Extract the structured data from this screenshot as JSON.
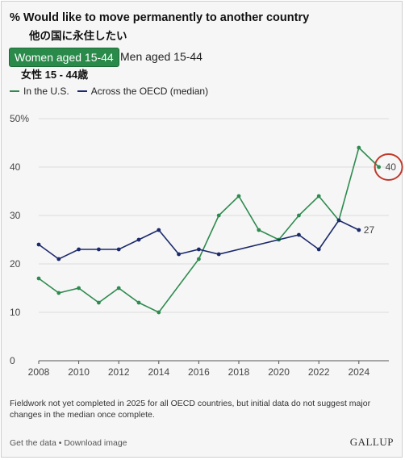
{
  "header": {
    "title": "% Would like to move permanently to another country",
    "title_jp": "他の国に永住したい",
    "tab_active": "Women aged 15-44",
    "tab_inactive": "Men aged 15-44",
    "subtitle_jp": "女性 15 - 44歳"
  },
  "footer": {
    "note": "Fieldwork not yet completed in 2025 for all OECD countries, but initial data do not suggest major changes in the median once complete.",
    "get_data": "Get the data",
    "separator": " • ",
    "download": "Download image",
    "brand": "GALLUP"
  },
  "colors": {
    "us": "#2e8b4f",
    "oecd": "#1b2a6b",
    "highlight_circle": "#c0392b",
    "grid": "#dcdcdc"
  },
  "chart_data": {
    "type": "line",
    "ylim": [
      0,
      50
    ],
    "xlim": [
      2008,
      2025.5
    ],
    "y_ticks": [
      0,
      10,
      20,
      30,
      40,
      50
    ],
    "y_tick_labels": [
      "0",
      "10",
      "20",
      "30",
      "40",
      "50%"
    ],
    "x_ticks": [
      2008,
      2010,
      2012,
      2014,
      2016,
      2018,
      2020,
      2022,
      2024
    ],
    "grid": "horizontal",
    "legend_position": "top-left",
    "series": [
      {
        "name": "In the U.S.",
        "color": "#2e8b4f",
        "points": [
          [
            2008,
            17
          ],
          [
            2009,
            14
          ],
          [
            2010,
            15
          ],
          [
            2011,
            12
          ],
          [
            2012,
            15
          ],
          [
            2013,
            12
          ],
          [
            2014,
            10
          ],
          [
            2016,
            21
          ],
          [
            2017,
            30
          ],
          [
            2018,
            34
          ],
          [
            2019,
            27
          ],
          [
            2020,
            25
          ],
          [
            2021,
            30
          ],
          [
            2022,
            34
          ],
          [
            2023,
            29
          ],
          [
            2024,
            44
          ],
          [
            2025,
            40
          ]
        ],
        "end_label": "40"
      },
      {
        "name": "Across the OECD (median)",
        "color": "#1b2a6b",
        "points": [
          [
            2008,
            24
          ],
          [
            2009,
            21
          ],
          [
            2010,
            23
          ],
          [
            2011,
            23
          ],
          [
            2012,
            23
          ],
          [
            2013,
            25
          ],
          [
            2014,
            27
          ],
          [
            2015,
            22
          ],
          [
            2016,
            23
          ],
          [
            2017,
            22
          ],
          [
            2021,
            26
          ],
          [
            2022,
            23
          ],
          [
            2023,
            29
          ],
          [
            2024,
            27
          ]
        ],
        "end_label": "27"
      }
    ]
  }
}
